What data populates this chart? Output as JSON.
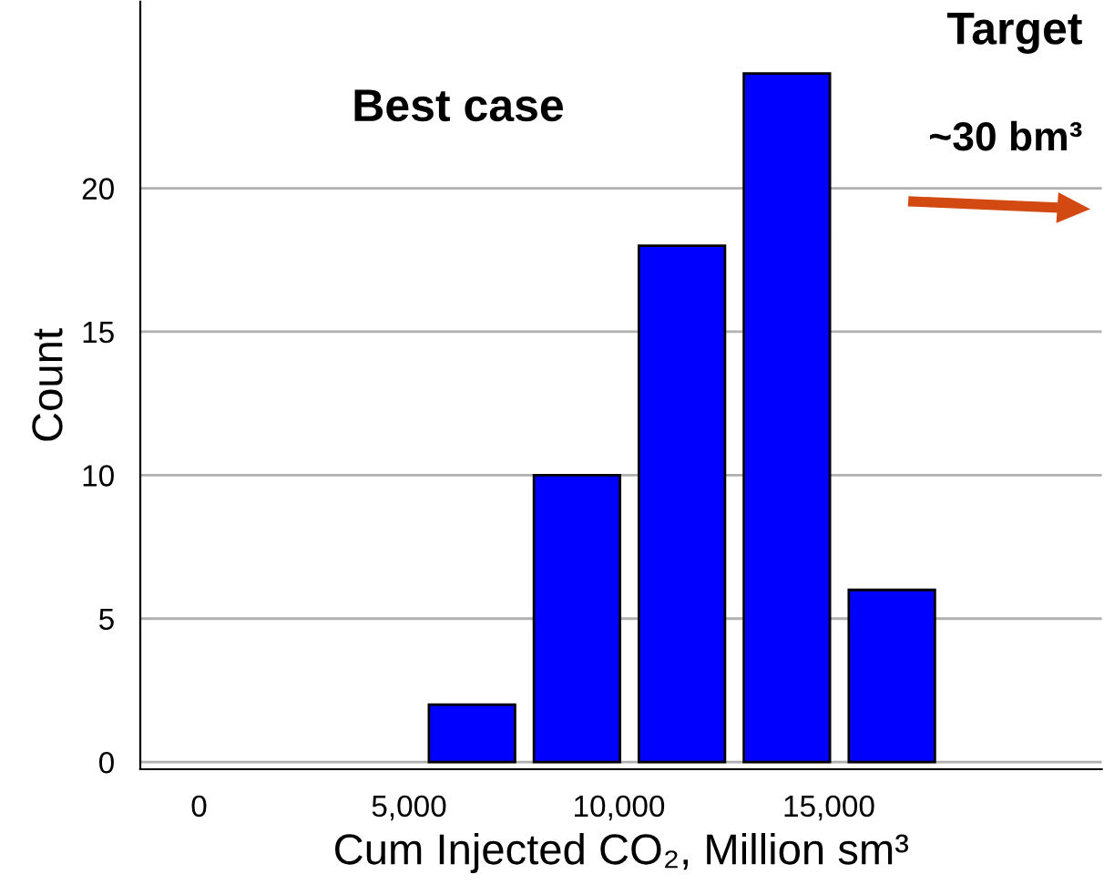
{
  "chart_data": {
    "type": "histogram",
    "xlabel": "Cum Injected CO₂, Million sm³",
    "ylabel": "Count",
    "bins": [
      5250,
      7750,
      10250,
      12750,
      15250,
      17750
    ],
    "values": [
      2,
      10,
      18,
      24,
      6
    ],
    "color": "#0000ff",
    "xlim": [
      -1400,
      21500
    ],
    "xticks": [
      0,
      {
        "value": 5000,
        "label": "5,000"
      },
      {
        "value": 10000,
        "label": "10,000"
      },
      {
        "value": 15000,
        "label": "15,000"
      }
    ],
    "ylim": [
      -0.25,
      26.5
    ],
    "yticks": [
      0,
      5,
      10,
      15,
      20
    ],
    "grid": "y",
    "annotations": [
      "Best case",
      "Target",
      "~30 bm³"
    ]
  }
}
